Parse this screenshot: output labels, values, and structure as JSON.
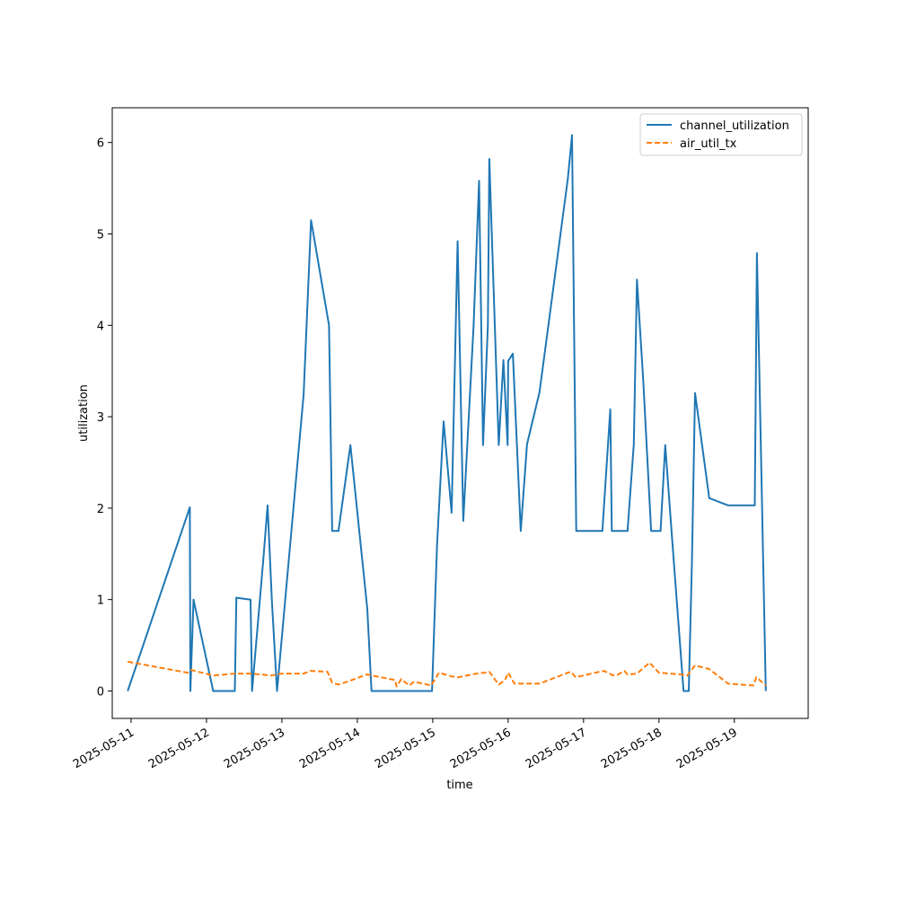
{
  "chart_data": {
    "type": "line",
    "xlabel": "time",
    "ylabel": "utilization",
    "x_ticks": [
      "2025-05-11",
      "2025-05-12",
      "2025-05-13",
      "2025-05-14",
      "2025-05-15",
      "2025-05-16",
      "2025-05-17",
      "2025-05-18",
      "2025-05-19"
    ],
    "y_ticks": [
      0,
      1,
      2,
      3,
      4,
      5,
      6
    ],
    "xlim": [
      "2025-05-10T18:00",
      "2025-05-19T23:30"
    ],
    "ylim": [
      -0.3,
      6.38
    ],
    "legend_position": "top-right",
    "series": [
      {
        "name": "channel_utilization",
        "color": "#1f77b4",
        "style": "solid",
        "points": [
          [
            "2025-05-10T22:55",
            0
          ],
          [
            "2025-05-11T18:42",
            2.01
          ],
          [
            "2025-05-11T18:52",
            0
          ],
          [
            "2025-05-11T19:52",
            1.0
          ],
          [
            "2025-05-12T02:07",
            0
          ],
          [
            "2025-05-12T09:00",
            0
          ],
          [
            "2025-05-12T09:30",
            1.02
          ],
          [
            "2025-05-12T14:00",
            1.0
          ],
          [
            "2025-05-12T14:30",
            0
          ],
          [
            "2025-05-12T18:00",
            1.4
          ],
          [
            "2025-05-12T19:26",
            2.03
          ],
          [
            "2025-05-12T20:48",
            1.0
          ],
          [
            "2025-05-12T22:26",
            0
          ],
          [
            "2025-05-13T06:54",
            3.24
          ],
          [
            "2025-05-13T09:17",
            5.15
          ],
          [
            "2025-05-13T15:00",
            4.0
          ],
          [
            "2025-05-13T16:00",
            1.75
          ],
          [
            "2025-05-13T18:00",
            1.75
          ],
          [
            "2025-05-13T21:48",
            2.69
          ],
          [
            "2025-05-14T03:10",
            0.9
          ],
          [
            "2025-05-14T04:30",
            0
          ],
          [
            "2025-05-14T23:47",
            0
          ],
          [
            "2025-05-15T01:23",
            1.6
          ],
          [
            "2025-05-15T03:28",
            2.95
          ],
          [
            "2025-05-15T06:00",
            1.95
          ],
          [
            "2025-05-15T07:56",
            4.92
          ],
          [
            "2025-05-15T09:43",
            1.86
          ],
          [
            "2025-05-15T13:00",
            4.0
          ],
          [
            "2025-05-15T14:45",
            5.58
          ],
          [
            "2025-05-15T16:00",
            2.69
          ],
          [
            "2025-05-15T17:33",
            4.0
          ],
          [
            "2025-05-15T18:00",
            5.82
          ],
          [
            "2025-05-15T21:00",
            2.69
          ],
          [
            "2025-05-15T22:30",
            3.62
          ],
          [
            "2025-05-15T23:50",
            2.69
          ],
          [
            "2025-05-16T00:00",
            3.61
          ],
          [
            "2025-05-16T01:30",
            3.69
          ],
          [
            "2025-05-16T04:00",
            1.75
          ],
          [
            "2025-05-16T06:00",
            2.7
          ],
          [
            "2025-05-16T10:00",
            3.27
          ],
          [
            "2025-05-16T19:00",
            5.6
          ],
          [
            "2025-05-16T20:20",
            6.08
          ],
          [
            "2025-05-16T21:40",
            1.75
          ],
          [
            "2025-05-17T06:00",
            1.75
          ],
          [
            "2025-05-17T08:30",
            3.08
          ],
          [
            "2025-05-17T09:00",
            1.75
          ],
          [
            "2025-05-17T14:00",
            1.75
          ],
          [
            "2025-05-17T16:00",
            2.7
          ],
          [
            "2025-05-17T17:00",
            4.5
          ],
          [
            "2025-05-17T19:00",
            3.4
          ],
          [
            "2025-05-17T21:30",
            1.75
          ],
          [
            "2025-05-18T00:30",
            1.75
          ],
          [
            "2025-05-18T02:00",
            2.69
          ],
          [
            "2025-05-18T04:00",
            1.75
          ],
          [
            "2025-05-18T07:50",
            0
          ],
          [
            "2025-05-18T09:30",
            0
          ],
          [
            "2025-05-18T10:30",
            1.4
          ],
          [
            "2025-05-18T11:30",
            3.26
          ],
          [
            "2025-05-18T16:00",
            2.11
          ],
          [
            "2025-05-18T22:00",
            2.03
          ],
          [
            "2025-05-19T06:30",
            2.03
          ],
          [
            "2025-05-19T07:10",
            4.79
          ],
          [
            "2025-05-19T10:00",
            0
          ]
        ]
      },
      {
        "name": "air_util_tx",
        "color": "#ff7f0e",
        "style": "dashed",
        "points": [
          [
            "2025-05-10T22:55",
            0.32
          ],
          [
            "2025-05-11T18:00",
            0.2
          ],
          [
            "2025-05-11T19:00",
            0.23
          ],
          [
            "2025-05-12T02:00",
            0.17
          ],
          [
            "2025-05-12T09:00",
            0.19
          ],
          [
            "2025-05-12T14:00",
            0.19
          ],
          [
            "2025-05-12T20:30",
            0.17
          ],
          [
            "2025-05-13T00:00",
            0.19
          ],
          [
            "2025-05-13T07:00",
            0.19
          ],
          [
            "2025-05-13T09:00",
            0.22
          ],
          [
            "2025-05-13T14:30",
            0.21
          ],
          [
            "2025-05-13T16:00",
            0.09
          ],
          [
            "2025-05-13T18:00",
            0.07
          ],
          [
            "2025-05-13T21:30",
            0.11
          ],
          [
            "2025-05-14T03:00",
            0.18
          ],
          [
            "2025-05-14T09:00",
            0.14
          ],
          [
            "2025-05-14T12:00",
            0.12
          ],
          [
            "2025-05-14T12:30",
            0.05
          ],
          [
            "2025-05-14T14:00",
            0.13
          ],
          [
            "2025-05-14T16:30",
            0.06
          ],
          [
            "2025-05-14T18:00",
            0.1
          ],
          [
            "2025-05-14T21:00",
            0.08
          ],
          [
            "2025-05-14T23:30",
            0.06
          ],
          [
            "2025-05-15T02:00",
            0.2
          ],
          [
            "2025-05-15T06:00",
            0.16
          ],
          [
            "2025-05-15T08:00",
            0.15
          ],
          [
            "2025-05-15T14:00",
            0.19
          ],
          [
            "2025-05-15T16:30",
            0.2
          ],
          [
            "2025-05-15T18:00",
            0.21
          ],
          [
            "2025-05-15T21:00",
            0.07
          ],
          [
            "2025-05-15T23:00",
            0.12
          ],
          [
            "2025-05-16T00:00",
            0.2
          ],
          [
            "2025-05-16T02:00",
            0.08
          ],
          [
            "2025-05-16T10:00",
            0.08
          ],
          [
            "2025-05-16T19:00",
            0.2
          ],
          [
            "2025-05-16T20:00",
            0.21
          ],
          [
            "2025-05-16T21:30",
            0.15
          ],
          [
            "2025-05-17T05:00",
            0.21
          ],
          [
            "2025-05-17T06:30",
            0.22
          ],
          [
            "2025-05-17T09:30",
            0.17
          ],
          [
            "2025-05-17T11:00",
            0.18
          ],
          [
            "2025-05-17T13:00",
            0.22
          ],
          [
            "2025-05-17T14:00",
            0.18
          ],
          [
            "2025-05-17T17:00",
            0.19
          ],
          [
            "2025-05-17T21:00",
            0.31
          ],
          [
            "2025-05-18T00:00",
            0.2
          ],
          [
            "2025-05-18T07:00",
            0.18
          ],
          [
            "2025-05-18T09:00",
            0.17
          ],
          [
            "2025-05-18T11:30",
            0.28
          ],
          [
            "2025-05-18T16:00",
            0.24
          ],
          [
            "2025-05-18T22:00",
            0.08
          ],
          [
            "2025-05-19T06:00",
            0.06
          ],
          [
            "2025-05-19T07:00",
            0.15
          ],
          [
            "2025-05-19T10:00",
            0.06
          ]
        ]
      }
    ]
  }
}
